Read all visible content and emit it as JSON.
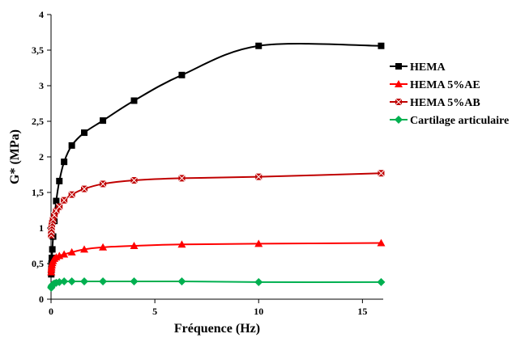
{
  "chart_data": {
    "type": "line",
    "xlabel": "Fréquence (Hz)",
    "ylabel": "G* (MPa)",
    "xlim": [
      0,
      16
    ],
    "ylim": [
      0,
      4
    ],
    "x_ticks": [
      "0",
      "5",
      "10",
      "15"
    ],
    "y_ticks": [
      "0",
      "0,5",
      "1",
      "1,5",
      "2",
      "2,5",
      "3",
      "3,5",
      "4"
    ],
    "grid": false,
    "legend_position": "right",
    "series": [
      {
        "name": "HEMA",
        "color": "#000000",
        "marker": "square",
        "x": [
          0.01,
          0.016,
          0.025,
          0.04,
          0.063,
          0.1,
          0.16,
          0.25,
          0.4,
          0.63,
          1,
          1.6,
          2.5,
          4,
          6.3,
          10,
          15.9
        ],
        "y": [
          0.35,
          0.42,
          0.5,
          0.58,
          0.7,
          0.88,
          1.1,
          1.38,
          1.66,
          1.93,
          2.16,
          2.34,
          2.51,
          2.79,
          3.15,
          3.56,
          3.56
        ]
      },
      {
        "name": "HEMA 5%AE",
        "color": "#ff0000",
        "marker": "triangle",
        "x": [
          0.01,
          0.016,
          0.025,
          0.04,
          0.063,
          0.1,
          0.16,
          0.25,
          0.4,
          0.63,
          1,
          1.6,
          2.5,
          4,
          6.3,
          10,
          15.9
        ],
        "y": [
          0.38,
          0.42,
          0.45,
          0.48,
          0.51,
          0.54,
          0.57,
          0.59,
          0.61,
          0.63,
          0.66,
          0.7,
          0.73,
          0.75,
          0.77,
          0.78,
          0.79
        ]
      },
      {
        "name": "HEMA 5%AB",
        "color": "#c00000",
        "marker": "star",
        "x": [
          0.01,
          0.016,
          0.025,
          0.04,
          0.063,
          0.1,
          0.16,
          0.25,
          0.4,
          0.63,
          1,
          1.6,
          2.5,
          4,
          6.3,
          10,
          15.9
        ],
        "y": [
          0.9,
          0.95,
          1.0,
          1.04,
          1.08,
          1.12,
          1.18,
          1.24,
          1.3,
          1.39,
          1.47,
          1.55,
          1.62,
          1.67,
          1.7,
          1.72,
          1.77
        ]
      },
      {
        "name": "Cartilage articulaire",
        "color": "#00b050",
        "marker": "diamond",
        "x": [
          0.01,
          0.016,
          0.025,
          0.04,
          0.063,
          0.1,
          0.16,
          0.25,
          0.4,
          0.63,
          1,
          1.6,
          2.5,
          4,
          6.3,
          10,
          15.9
        ],
        "y": [
          0.16,
          0.17,
          0.18,
          0.19,
          0.2,
          0.21,
          0.22,
          0.23,
          0.24,
          0.25,
          0.25,
          0.25,
          0.25,
          0.25,
          0.25,
          0.24,
          0.24
        ]
      }
    ]
  }
}
